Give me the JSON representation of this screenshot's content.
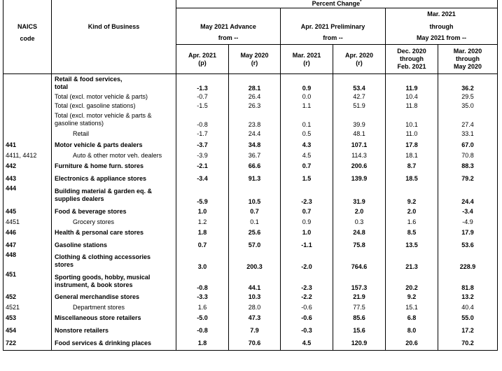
{
  "header": {
    "percent_change": "Percent Change",
    "percent_change_sup": "*",
    "naics_line1": "NAICS",
    "naics_line2": "code",
    "kind_of_business": "Kind of Business",
    "group1_line1": "May 2021 Advance",
    "group1_line2": "from --",
    "group2_line1": "Apr. 2021 Preliminary",
    "group2_line2": "from --",
    "group3_line1": "Mar. 2021",
    "group3_line2": "through",
    "group3_line3": "May 2021 from --",
    "cols": [
      {
        "l1": "Apr. 2021",
        "l2": "",
        "l3": "(p)"
      },
      {
        "l1": "May 2020",
        "l2": "",
        "l3": "(r)"
      },
      {
        "l1": "Mar. 2021",
        "l2": "",
        "l3": "(r)"
      },
      {
        "l1": "Apr. 2020",
        "l2": "",
        "l3": "(r)"
      },
      {
        "l1": "Dec. 2020",
        "l2": "through",
        "l3": "Feb. 2021"
      },
      {
        "l1": "Mar. 2020",
        "l2": "through",
        "l3": "May 2020"
      }
    ]
  },
  "rows": [
    {
      "naics": "",
      "label": "Retail & food services,",
      "label2": "total",
      "bold": true,
      "ind": 0,
      "values": [
        "-1.3",
        "28.1",
        "0.9",
        "53.4",
        "11.9",
        "36.2"
      ]
    },
    {
      "naics": "",
      "label": "Total (excl. motor vehicle & parts)",
      "label2": "",
      "bold": false,
      "ind": 0,
      "values": [
        "-0.7",
        "26.4",
        "0.0",
        "42.7",
        "10.4",
        "29.5"
      ]
    },
    {
      "naics": "",
      "label": "Total (excl. gasoline stations)",
      "label2": "",
      "bold": false,
      "ind": 0,
      "values": [
        "-1.5",
        "26.3",
        "1.1",
        "51.9",
        "11.8",
        "35.0"
      ]
    },
    {
      "naics": "",
      "label": "Total (excl. motor vehicle & parts &",
      "label2": "gasoline stations)",
      "bold": false,
      "ind": 0,
      "values": [
        "-0.8",
        "23.8",
        "0.1",
        "39.9",
        "10.1",
        "27.4"
      ]
    },
    {
      "naics": "",
      "label": "Retail",
      "label2": "",
      "bold": false,
      "ind": 1,
      "values": [
        "-1.7",
        "24.4",
        "0.5",
        "48.1",
        "11.0",
        "33.1"
      ]
    },
    {
      "naics": "441",
      "label": "Motor vehicle & parts dealers",
      "label2": "",
      "bold": true,
      "ind": 0,
      "values": [
        "-3.7",
        "34.8",
        "4.3",
        "107.1",
        "17.8",
        "67.0"
      ]
    },
    {
      "naics": "4411, 4412",
      "label": "Auto & other motor veh. dealers",
      "label2": "",
      "bold": false,
      "ind": 1,
      "values": [
        "-3.9",
        "36.7",
        "4.5",
        "114.3",
        "18.1",
        "70.8"
      ]
    },
    {
      "naics": "442",
      "label": "Furniture & home furn. stores",
      "label2": "",
      "bold": true,
      "ind": 0,
      "values": [
        "-2.1",
        "66.6",
        "0.7",
        "200.6",
        "8.7",
        "88.3"
      ]
    },
    {
      "naics": "443",
      "label": "Electronics & appliance stores",
      "label2": "",
      "bold": true,
      "ind": 0,
      "values": [
        "-3.4",
        "91.3",
        "1.5",
        "139.9",
        "18.5",
        "79.2"
      ]
    },
    {
      "naics": "444",
      "label": "Building material & garden eq. &",
      "label2": "supplies dealers",
      "bold": true,
      "ind": 0,
      "values": [
        "-5.9",
        "10.5",
        "-2.3",
        "31.9",
        "9.2",
        "24.4"
      ]
    },
    {
      "naics": "445",
      "label": "Food & beverage stores",
      "label2": "",
      "bold": true,
      "ind": 0,
      "values": [
        "1.0",
        "0.7",
        "0.7",
        "2.0",
        "2.0",
        "-3.4"
      ]
    },
    {
      "naics": "4451",
      "label": "Grocery stores",
      "label2": "",
      "bold": false,
      "ind": 1,
      "values": [
        "1.2",
        "0.1",
        "0.9",
        "0.3",
        "1.6",
        "-4.9"
      ]
    },
    {
      "naics": "446",
      "label": "Health & personal care stores",
      "label2": "",
      "bold": true,
      "ind": 0,
      "values": [
        "1.8",
        "25.6",
        "1.0",
        "24.8",
        "8.5",
        "17.9"
      ]
    },
    {
      "naics": "447",
      "label": "Gasoline stations",
      "label2": "",
      "bold": true,
      "ind": 0,
      "values": [
        "0.7",
        "57.0",
        "-1.1",
        "75.8",
        "13.5",
        "53.6"
      ]
    },
    {
      "naics": "448",
      "label": "Clothing & clothing accessories",
      "label2": "stores",
      "bold": true,
      "ind": 0,
      "values": [
        "3.0",
        "200.3",
        "-2.0",
        "764.6",
        "21.3",
        "228.9"
      ]
    },
    {
      "naics": "451",
      "label": "Sporting goods, hobby, musical",
      "label2": "instrument, & book stores",
      "bold": true,
      "ind": 0,
      "values": [
        "-0.8",
        "44.1",
        "-2.3",
        "157.3",
        "20.2",
        "81.8"
      ]
    },
    {
      "naics": "452",
      "label": "General merchandise stores",
      "label2": "",
      "bold": true,
      "ind": 0,
      "values": [
        "-3.3",
        "10.3",
        "-2.2",
        "21.9",
        "9.2",
        "13.2"
      ]
    },
    {
      "naics": "4521",
      "label": "Department stores",
      "label2": "",
      "bold": false,
      "ind": 1,
      "values": [
        "1.6",
        "28.0",
        "-0.6",
        "77.5",
        "15.1",
        "40.4"
      ]
    },
    {
      "naics": "453",
      "label": "Miscellaneous store retailers",
      "label2": "",
      "bold": true,
      "ind": 0,
      "values": [
        "-5.0",
        "47.3",
        "-0.6",
        "85.6",
        "6.8",
        "55.0"
      ]
    },
    {
      "naics": "454",
      "label": "Nonstore retailers",
      "label2": "",
      "bold": true,
      "ind": 0,
      "values": [
        "-0.8",
        "7.9",
        "-0.3",
        "15.6",
        "8.0",
        "17.2"
      ]
    },
    {
      "naics": "722",
      "label": "Food services & drinking places",
      "label2": "",
      "bold": true,
      "ind": 0,
      "values": [
        "1.8",
        "70.6",
        "4.5",
        "120.9",
        "20.6",
        "70.2"
      ]
    }
  ]
}
